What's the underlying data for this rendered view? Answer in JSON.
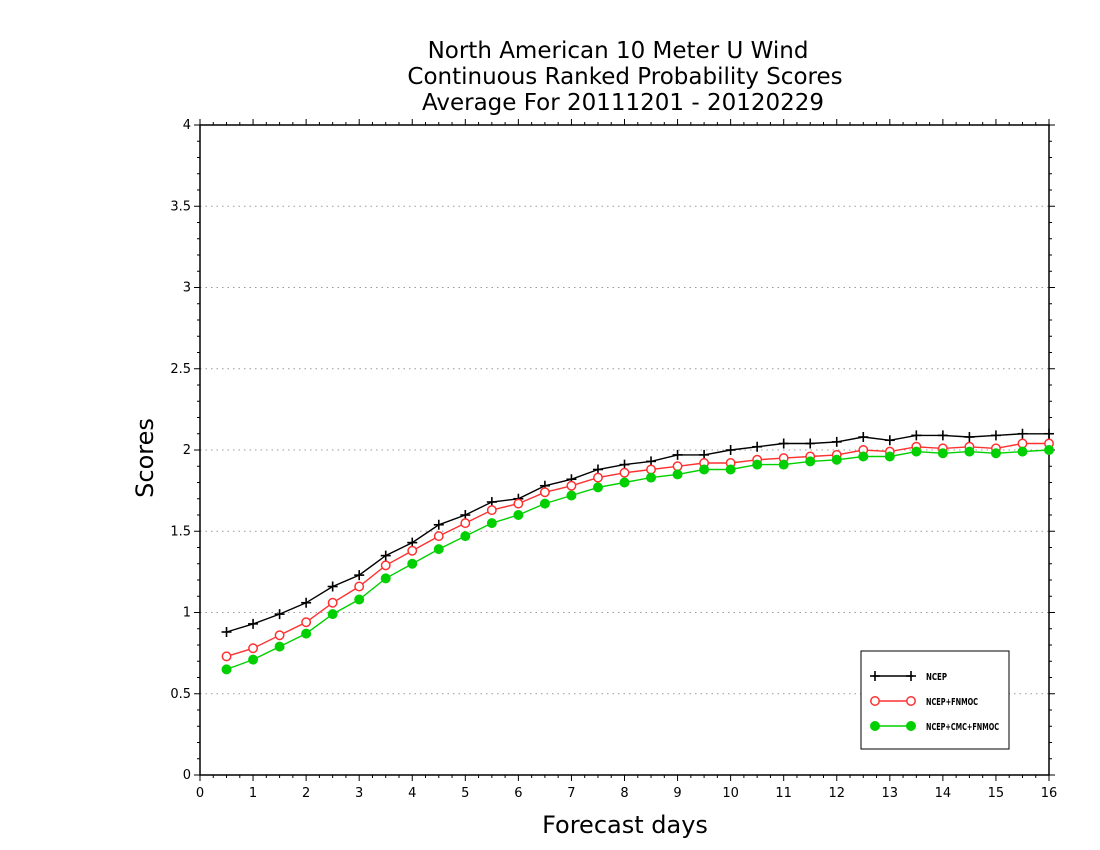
{
  "chart_data": {
    "type": "line",
    "title": [
      "North American 10 Meter U Wind",
      "Continuous Ranked Probability Scores",
      "Average For 20111201 - 20120229"
    ],
    "xlabel": "Forecast days",
    "ylabel": "Scores",
    "xlim": [
      0,
      16
    ],
    "ylim": [
      0,
      4
    ],
    "xticks": [
      "0",
      "1",
      "2",
      "3",
      "4",
      "5",
      "6",
      "7",
      "8",
      "9",
      "10",
      "11",
      "12",
      "13",
      "14",
      "15",
      "16"
    ],
    "yticks": [
      "0",
      "0.5",
      "1",
      "1.5",
      "2",
      "2.5",
      "3",
      "3.5",
      "4"
    ],
    "grid": "horizontal-dotted",
    "legend_position": "bottom-right",
    "x": [
      0.5,
      1,
      1.5,
      2,
      2.5,
      3,
      3.5,
      4,
      4.5,
      5,
      5.5,
      6,
      6.5,
      7,
      7.5,
      8,
      8.5,
      9,
      9.5,
      10,
      10.5,
      11,
      11.5,
      12,
      12.5,
      13,
      13.5,
      14,
      14.5,
      15,
      15.5,
      16
    ],
    "series": [
      {
        "name": "NCEP",
        "color": "#000000",
        "marker": "plus",
        "values": [
          0.88,
          0.93,
          0.99,
          1.06,
          1.16,
          1.23,
          1.35,
          1.43,
          1.54,
          1.6,
          1.68,
          1.7,
          1.78,
          1.82,
          1.88,
          1.91,
          1.93,
          1.97,
          1.97,
          2.0,
          2.02,
          2.04,
          2.04,
          2.05,
          2.08,
          2.06,
          2.09,
          2.09,
          2.08,
          2.09,
          2.1,
          2.1
        ]
      },
      {
        "name": "NCEP+FNMOC",
        "color": "#ff3030",
        "marker": "open-circle",
        "values": [
          0.73,
          0.78,
          0.86,
          0.94,
          1.06,
          1.16,
          1.29,
          1.38,
          1.47,
          1.55,
          1.63,
          1.67,
          1.74,
          1.78,
          1.83,
          1.86,
          1.88,
          1.9,
          1.92,
          1.92,
          1.94,
          1.95,
          1.96,
          1.97,
          2.0,
          1.99,
          2.02,
          2.01,
          2.02,
          2.01,
          2.04,
          2.04
        ]
      },
      {
        "name": "NCEP+CMC+FNMOC",
        "color": "#00d000",
        "marker": "filled-circle",
        "values": [
          0.65,
          0.71,
          0.79,
          0.87,
          0.99,
          1.08,
          1.21,
          1.3,
          1.39,
          1.47,
          1.55,
          1.6,
          1.67,
          1.72,
          1.77,
          1.8,
          1.83,
          1.85,
          1.88,
          1.88,
          1.91,
          1.91,
          1.93,
          1.94,
          1.96,
          1.96,
          1.99,
          1.98,
          1.99,
          1.98,
          1.99,
          2.0
        ]
      }
    ]
  }
}
